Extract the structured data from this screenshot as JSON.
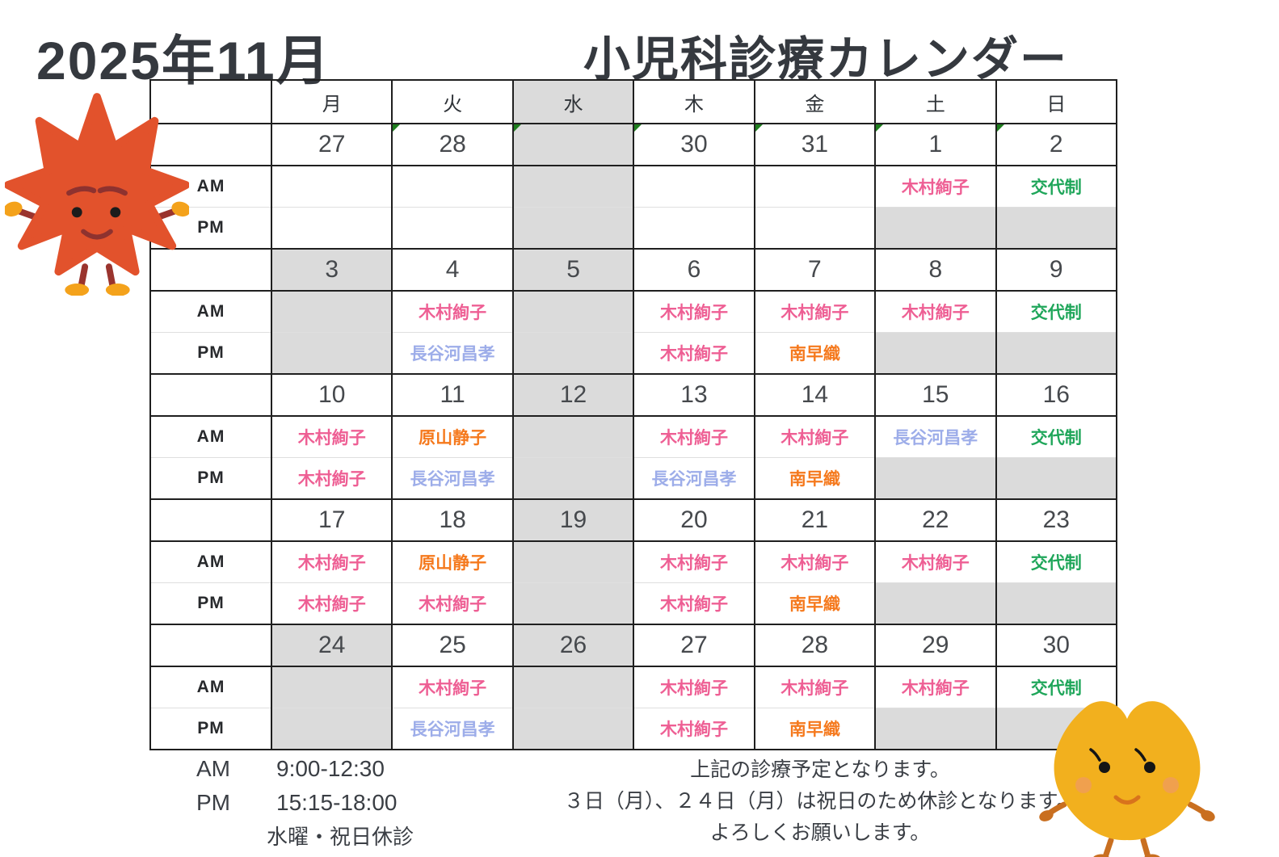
{
  "title": {
    "month": "2025年11月",
    "name": "小児科診療カレンダー"
  },
  "palette": {
    "pink": "#ee5f94",
    "orange": "#f5791d",
    "blue": "#9dade9",
    "green": "#1fa65a"
  },
  "ui_colors": {
    "closed_bg": "#dbdbdb",
    "muted_date": "#d4d6d8",
    "grid_line": "#1f1f1f",
    "ampm_divider": "#dfdfdf",
    "triangle_green": "#1e7e1e",
    "date_color": "#46494d",
    "header_color": "#2f3338"
  },
  "icons": {
    "maple": "maple-leaf-character",
    "ginkgo": "ginkgo-leaf-character"
  },
  "calendar": {
    "row_labels": {
      "am": "AM",
      "pm": "PM"
    },
    "weekday_headers": [
      {
        "label": "月"
      },
      {
        "label": "火"
      },
      {
        "label": "水",
        "closed": true
      },
      {
        "label": "木"
      },
      {
        "label": "金"
      },
      {
        "label": "土"
      },
      {
        "label": "日"
      }
    ],
    "weeks": [
      {
        "dates": [
          {
            "text": "27",
            "muted": true
          },
          {
            "text": "28",
            "muted": true,
            "tri": true
          },
          {
            "text": "",
            "closed": true,
            "tri": true
          },
          {
            "text": "30",
            "muted": true,
            "tri": true
          },
          {
            "text": "31",
            "muted": true,
            "tri": true
          },
          {
            "text": "1",
            "tri": true
          },
          {
            "text": "2",
            "tri": true
          }
        ],
        "am": [
          {},
          {},
          {
            "closed": true
          },
          {},
          {},
          {
            "text": "木村絢子",
            "color": "pink"
          },
          {
            "text": "交代制",
            "color": "green"
          }
        ],
        "pm": [
          {},
          {},
          {
            "closed": true
          },
          {},
          {},
          {
            "closed": true
          },
          {
            "closed": true
          }
        ]
      },
      {
        "dates": [
          {
            "text": "3",
            "closed": true
          },
          {
            "text": "4"
          },
          {
            "text": "5",
            "closed": true
          },
          {
            "text": "6"
          },
          {
            "text": "7"
          },
          {
            "text": "8"
          },
          {
            "text": "9"
          }
        ],
        "am": [
          {
            "closed": true
          },
          {
            "text": "木村絢子",
            "color": "pink"
          },
          {
            "closed": true
          },
          {
            "text": "木村絢子",
            "color": "pink"
          },
          {
            "text": "木村絢子",
            "color": "pink"
          },
          {
            "text": "木村絢子",
            "color": "pink"
          },
          {
            "text": "交代制",
            "color": "green"
          }
        ],
        "pm": [
          {
            "closed": true
          },
          {
            "text": "長谷河昌孝",
            "color": "blue"
          },
          {
            "closed": true
          },
          {
            "text": "木村絢子",
            "color": "pink"
          },
          {
            "text": "南早織",
            "color": "orange"
          },
          {
            "closed": true
          },
          {
            "closed": true
          }
        ]
      },
      {
        "dates": [
          {
            "text": "10"
          },
          {
            "text": "11"
          },
          {
            "text": "12",
            "closed": true
          },
          {
            "text": "13"
          },
          {
            "text": "14"
          },
          {
            "text": "15"
          },
          {
            "text": "16"
          }
        ],
        "am": [
          {
            "text": "木村絢子",
            "color": "pink"
          },
          {
            "text": "原山静子",
            "color": "orange"
          },
          {
            "closed": true
          },
          {
            "text": "木村絢子",
            "color": "pink"
          },
          {
            "text": "木村絢子",
            "color": "pink"
          },
          {
            "text": "長谷河昌孝",
            "color": "blue"
          },
          {
            "text": "交代制",
            "color": "green"
          }
        ],
        "pm": [
          {
            "text": "木村絢子",
            "color": "pink"
          },
          {
            "text": "長谷河昌孝",
            "color": "blue"
          },
          {
            "closed": true
          },
          {
            "text": "長谷河昌孝",
            "color": "blue"
          },
          {
            "text": "南早織",
            "color": "orange"
          },
          {
            "closed": true
          },
          {
            "closed": true
          }
        ]
      },
      {
        "dates": [
          {
            "text": "17"
          },
          {
            "text": "18"
          },
          {
            "text": "19",
            "closed": true
          },
          {
            "text": "20"
          },
          {
            "text": "21"
          },
          {
            "text": "22"
          },
          {
            "text": "23"
          }
        ],
        "am": [
          {
            "text": "木村絢子",
            "color": "pink"
          },
          {
            "text": "原山静子",
            "color": "orange"
          },
          {
            "closed": true
          },
          {
            "text": "木村絢子",
            "color": "pink"
          },
          {
            "text": "木村絢子",
            "color": "pink"
          },
          {
            "text": "木村絢子",
            "color": "pink"
          },
          {
            "text": "交代制",
            "color": "green"
          }
        ],
        "pm": [
          {
            "text": "木村絢子",
            "color": "pink"
          },
          {
            "text": "木村絢子",
            "color": "pink"
          },
          {
            "closed": true
          },
          {
            "text": "木村絢子",
            "color": "pink"
          },
          {
            "text": "南早織",
            "color": "orange"
          },
          {
            "closed": true
          },
          {
            "closed": true
          }
        ]
      },
      {
        "dates": [
          {
            "text": "24",
            "closed": true
          },
          {
            "text": "25"
          },
          {
            "text": "26",
            "closed": true
          },
          {
            "text": "27"
          },
          {
            "text": "28"
          },
          {
            "text": "29"
          },
          {
            "text": "30"
          }
        ],
        "am": [
          {
            "closed": true
          },
          {
            "text": "木村絢子",
            "color": "pink"
          },
          {
            "closed": true
          },
          {
            "text": "木村絢子",
            "color": "pink"
          },
          {
            "text": "木村絢子",
            "color": "pink"
          },
          {
            "text": "木村絢子",
            "color": "pink"
          },
          {
            "text": "交代制",
            "color": "green"
          }
        ],
        "pm": [
          {
            "closed": true
          },
          {
            "text": "長谷河昌孝",
            "color": "blue"
          },
          {
            "closed": true
          },
          {
            "text": "木村絢子",
            "color": "pink"
          },
          {
            "text": "南早織",
            "color": "orange"
          },
          {
            "closed": true
          },
          {
            "closed": true
          }
        ]
      }
    ]
  },
  "hours": {
    "am_label": "AM",
    "am_time": "9:00-12:30",
    "pm_label": "PM",
    "pm_time": "15:15-18:00",
    "closed_note": "水曜・祝日休診"
  },
  "notes": [
    "上記の診療予定となります。",
    "３日（月）、２４日（月）は祝日のため休診となります。",
    "よろしくお願いします。"
  ]
}
